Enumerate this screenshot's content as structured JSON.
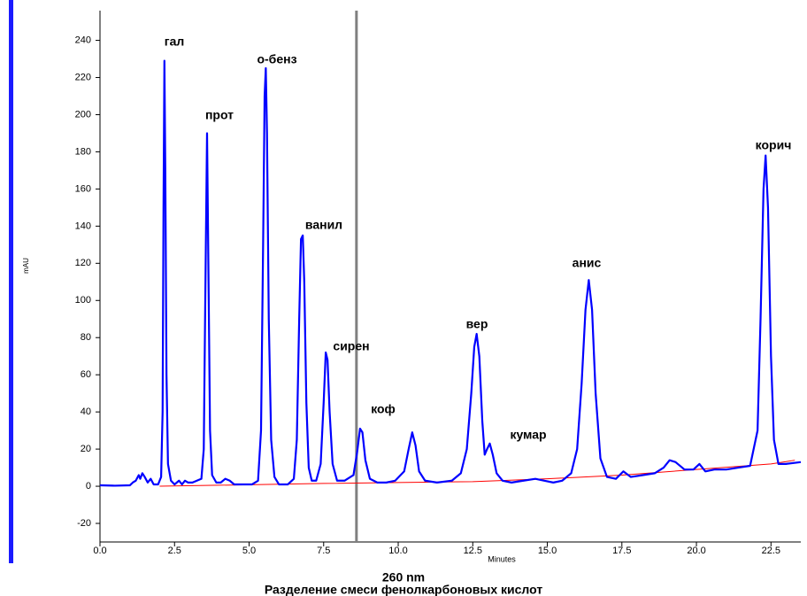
{
  "chart_data": {
    "type": "line",
    "title": "Разделение смеси фенолкарбоновых кислот",
    "subtitle": "260 nm",
    "x_label": "Minutes",
    "y_label": "mAU",
    "xlim": [
      0,
      23.5
    ],
    "ylim": [
      -30,
      256
    ],
    "xticks": [
      {
        "value": 0,
        "label": "0.0"
      },
      2.5,
      {
        "value": 5,
        "label": "5.0"
      },
      7.5,
      {
        "value": 10,
        "label": "10.0"
      },
      12.5,
      {
        "value": 15,
        "label": "15.0"
      },
      17.5,
      {
        "value": 20,
        "label": "20.0"
      },
      22.5
    ],
    "yticks": [
      -20,
      0,
      20,
      40,
      60,
      80,
      100,
      120,
      140,
      160,
      180,
      200,
      220,
      240
    ],
    "cursor_x": 8.6,
    "annotations": [
      "гал",
      "прот",
      "о-бенз",
      "ванил",
      "сирен",
      "коф",
      "вер",
      "кумар",
      "анис",
      "корич"
    ],
    "series": [
      {
        "name": "trace",
        "color": "#0000ff",
        "x": [
          0,
          0.5,
          1.0,
          1.1,
          1.2,
          1.3,
          1.35,
          1.42,
          1.5,
          1.6,
          1.7,
          1.8,
          1.95,
          2.05,
          2.1,
          2.13,
          2.16,
          2.19,
          2.23,
          2.28,
          2.38,
          2.5,
          2.65,
          2.75,
          2.85,
          2.95,
          3.1,
          3.25,
          3.4,
          3.48,
          3.53,
          3.59,
          3.64,
          3.69,
          3.76,
          3.9,
          4.05,
          4.2,
          4.35,
          4.5,
          4.8,
          5.1,
          5.3,
          5.4,
          5.47,
          5.52,
          5.56,
          5.6,
          5.66,
          5.74,
          5.85,
          6.0,
          6.3,
          6.5,
          6.6,
          6.68,
          6.74,
          6.8,
          6.85,
          6.92,
          7.0,
          7.1,
          7.25,
          7.4,
          7.5,
          7.57,
          7.63,
          7.7,
          7.8,
          7.95,
          8.2,
          8.5,
          8.62,
          8.72,
          8.8,
          8.9,
          9.05,
          9.3,
          9.6,
          9.9,
          10.2,
          10.35,
          10.47,
          10.58,
          10.7,
          10.9,
          11.3,
          11.8,
          12.1,
          12.3,
          12.45,
          12.55,
          12.63,
          12.72,
          12.82,
          12.9,
          12.98,
          13.07,
          13.17,
          13.3,
          13.5,
          13.8,
          14.2,
          14.6,
          14.9,
          15.2,
          15.5,
          15.8,
          16.0,
          16.15,
          16.28,
          16.39,
          16.5,
          16.62,
          16.78,
          17.0,
          17.3,
          17.55,
          17.8,
          18.2,
          18.6,
          18.9,
          19.1,
          19.3,
          19.6,
          19.9,
          20.1,
          20.3,
          20.6,
          21.0,
          21.4,
          21.8,
          22.05,
          22.15,
          22.25,
          22.32,
          22.4,
          22.5,
          22.6,
          22.75,
          23.0,
          23.5
        ],
        "values": [
          0.5,
          0.3,
          0.5,
          2,
          3,
          6,
          4,
          7,
          5,
          2,
          4,
          1,
          1,
          5,
          40,
          150,
          229,
          170,
          60,
          12,
          3,
          1,
          3,
          1,
          3,
          2,
          2,
          3,
          4,
          20,
          100,
          190,
          110,
          30,
          6,
          2,
          2,
          4,
          3,
          1,
          1,
          1,
          3,
          30,
          130,
          210,
          225,
          190,
          90,
          25,
          5,
          1,
          1,
          4,
          25,
          90,
          133,
          135,
          110,
          45,
          10,
          3,
          3,
          12,
          45,
          72,
          68,
          40,
          12,
          3,
          3,
          6,
          18,
          31,
          29,
          14,
          4,
          2,
          2,
          3,
          8,
          20,
          29,
          22,
          8,
          3,
          2,
          3,
          7,
          20,
          50,
          75,
          82,
          70,
          35,
          17,
          20,
          23,
          17,
          7,
          3,
          2,
          3,
          4,
          3,
          2,
          3,
          7,
          20,
          55,
          95,
          111,
          95,
          50,
          15,
          5,
          4,
          8,
          5,
          6,
          7,
          10,
          14,
          13,
          9,
          9,
          12,
          8,
          9,
          9,
          10,
          11,
          30,
          90,
          160,
          178,
          150,
          70,
          25,
          12,
          12,
          13
        ]
      },
      {
        "name": "baseline",
        "color": "#ff0000",
        "x": [
          2,
          7.5,
          12.5,
          15,
          17.5,
          20,
          22.5,
          23.3
        ],
        "values": [
          0,
          1.5,
          2.5,
          4,
          6,
          9,
          12,
          14
        ]
      }
    ]
  }
}
